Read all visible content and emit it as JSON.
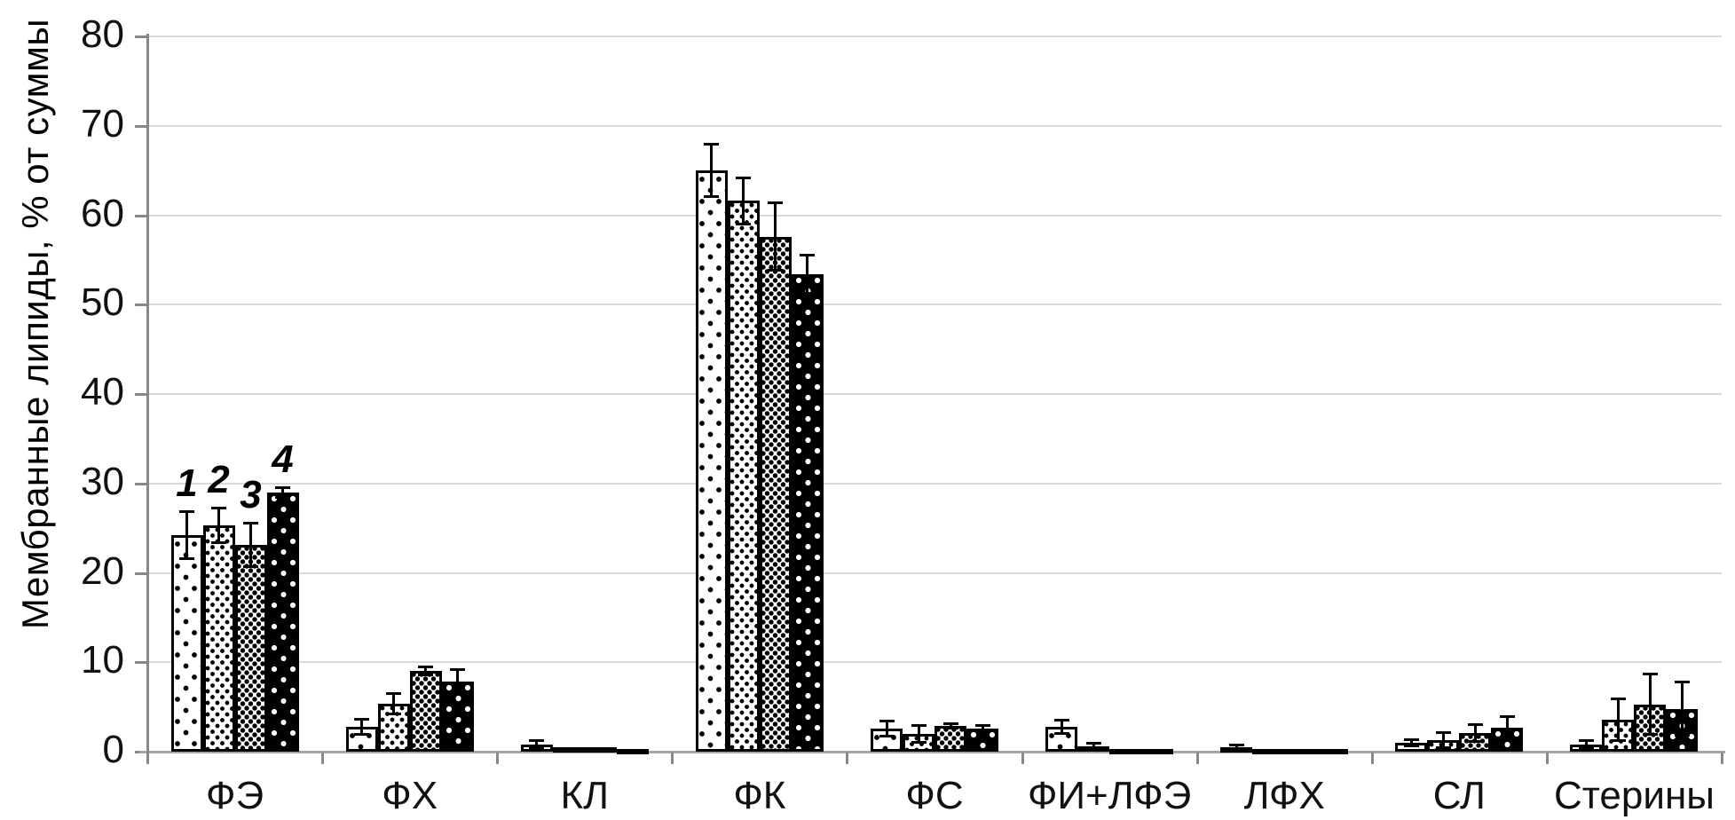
{
  "chart_data": {
    "type": "bar",
    "title": "",
    "ylabel": "Мембранные липиды, % от суммы",
    "xlabel": "",
    "ylim": [
      0,
      80
    ],
    "ytick_step": 10,
    "ytick_labels": [
      "0",
      "10",
      "20",
      "30",
      "40",
      "50",
      "60",
      "70",
      "80"
    ],
    "grid": true,
    "legend_position": "none",
    "error_bars": true,
    "bar_group_labels": {
      "category": "ФЭ",
      "labels": [
        "1",
        "2",
        "3",
        "4"
      ]
    },
    "categories": [
      "ФЭ",
      "ФХ",
      "КЛ",
      "ФК",
      "ФС",
      "ФИ+ЛФЭ",
      "ЛФХ",
      "СЛ",
      "Стерины"
    ],
    "series": [
      {
        "name": "1",
        "pattern": "white-sparse-black-dots",
        "values": [
          24.2,
          2.8,
          0.8,
          65.0,
          2.6,
          2.8,
          0.5,
          1.0,
          0.8
        ],
        "errors": [
          2.7,
          0.9,
          0.5,
          3.0,
          0.9,
          0.8,
          0.3,
          0.4,
          0.5
        ]
      },
      {
        "name": "2",
        "pattern": "white-medium-black-dots",
        "values": [
          25.3,
          5.4,
          0.5,
          61.6,
          2.0,
          0.6,
          0.1,
          1.3,
          3.6
        ],
        "errors": [
          2.0,
          1.2,
          0,
          2.6,
          1.0,
          0.4,
          0,
          0.9,
          2.4
        ]
      },
      {
        "name": "3",
        "pattern": "white-dense-black-dots",
        "values": [
          23.1,
          9.0,
          0.5,
          57.6,
          2.9,
          0.2,
          0.2,
          2.1,
          5.3
        ],
        "errors": [
          2.5,
          0.5,
          0,
          3.8,
          0.3,
          0,
          0,
          1.0,
          3.4
        ]
      },
      {
        "name": "4",
        "pattern": "black-sparse-white-dots",
        "values": [
          29.0,
          7.8,
          0.3,
          53.4,
          2.6,
          0.1,
          0,
          2.7,
          4.8
        ],
        "errors": [
          0.6,
          1.4,
          0,
          2.2,
          0.4,
          0,
          0,
          1.3,
          3.0
        ]
      }
    ]
  },
  "colors": {
    "background": "#ffffff",
    "gridline": "#d9d9d9",
    "axis_line": "#898989",
    "baseline": "#a6a6a6",
    "bar_border": "#000000",
    "text": "#000000"
  }
}
